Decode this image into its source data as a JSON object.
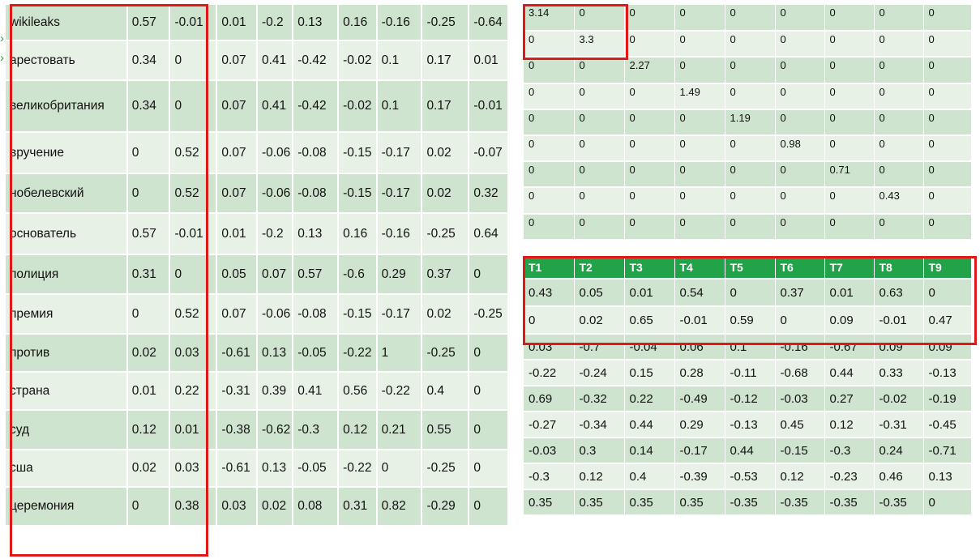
{
  "u_matrix": {
    "rows": [
      {
        "term": "wikileaks",
        "values": [
          "0.57",
          "-0.01",
          "0.01",
          "-0.2",
          "0.13",
          "0.16",
          "-0.16",
          "-0.25",
          "-0.64"
        ]
      },
      {
        "term": "арестовать",
        "values": [
          "0.34",
          "0",
          "0.07",
          "0.41",
          "-0.42",
          "-0.02",
          "0.1",
          "0.17",
          "0.01"
        ]
      },
      {
        "term": "великобритания",
        "values": [
          "0.34",
          "0",
          "0.07",
          "0.41",
          "-0.42",
          "-0.02",
          "0.1",
          "0.17",
          "-0.01"
        ]
      },
      {
        "term": "вручение",
        "values": [
          "0",
          "0.52",
          "0.07",
          "-0.06",
          "-0.08",
          "-0.15",
          "-0.17",
          "0.02",
          "-0.07"
        ]
      },
      {
        "term": "нобелевский",
        "values": [
          "0",
          "0.52",
          "0.07",
          "-0.06",
          "-0.08",
          "-0.15",
          "-0.17",
          "0.02",
          "0.32"
        ]
      },
      {
        "term": "основатель",
        "values": [
          "0.57",
          "-0.01",
          "0.01",
          "-0.2",
          "0.13",
          "0.16",
          "-0.16",
          "-0.25",
          "0.64"
        ]
      },
      {
        "term": "полиция",
        "values": [
          "0.31",
          "0",
          "0.05",
          "0.07",
          "0.57",
          "-0.6",
          "0.29",
          "0.37",
          "0"
        ]
      },
      {
        "term": "премия",
        "values": [
          "0",
          "0.52",
          "0.07",
          "-0.06",
          "-0.08",
          "-0.15",
          "-0.17",
          "0.02",
          "-0.25"
        ]
      },
      {
        "term": "против",
        "values": [
          "0.02",
          "0.03",
          "-0.61",
          "0.13",
          "-0.05",
          "-0.22",
          "1",
          "-0.25",
          "0"
        ]
      },
      {
        "term": "страна",
        "values": [
          "0.01",
          "0.22",
          "-0.31",
          "0.39",
          "0.41",
          "0.56",
          "-0.22",
          "0.4",
          "0"
        ]
      },
      {
        "term": "суд",
        "values": [
          "0.12",
          "0.01",
          "-0.38",
          "-0.62",
          "-0.3",
          "0.12",
          "0.21",
          "0.55",
          "0"
        ]
      },
      {
        "term": "сша",
        "values": [
          "0.02",
          "0.03",
          "-0.61",
          "0.13",
          "-0.05",
          "-0.22",
          "0",
          "-0.25",
          "0"
        ]
      },
      {
        "term": "церемония",
        "values": [
          "0",
          "0.38",
          "0.03",
          "0.02",
          "0.08",
          "0.31",
          "0.82",
          "-0.29",
          "0"
        ]
      }
    ]
  },
  "s_matrix": {
    "rows": [
      [
        "3.14",
        "0",
        "0",
        "0",
        "0",
        "0",
        "0",
        "0",
        "0"
      ],
      [
        "0",
        "3.3",
        "0",
        "0",
        "0",
        "0",
        "0",
        "0",
        "0"
      ],
      [
        "0",
        "0",
        "2.27",
        "0",
        "0",
        "0",
        "0",
        "0",
        "0"
      ],
      [
        "0",
        "0",
        "0",
        "1.49",
        "0",
        "0",
        "0",
        "0",
        "0"
      ],
      [
        "0",
        "0",
        "0",
        "0",
        "1.19",
        "0",
        "0",
        "0",
        "0"
      ],
      [
        "0",
        "0",
        "0",
        "0",
        "0",
        "0.98",
        "0",
        "0",
        "0"
      ],
      [
        "0",
        "0",
        "0",
        "0",
        "0",
        "0",
        "0.71",
        "0",
        "0"
      ],
      [
        "0",
        "0",
        "0",
        "0",
        "0",
        "0",
        "0",
        "0.43",
        "0"
      ],
      [
        "0",
        "0",
        "0",
        "0",
        "0",
        "0",
        "0",
        "0",
        "0"
      ]
    ]
  },
  "v_matrix": {
    "headers": [
      "T1",
      "T2",
      "T3",
      "T4",
      "T5",
      "T6",
      "T7",
      "T8",
      "T9"
    ],
    "rows": [
      [
        "0.43",
        "0.05",
        "0.01",
        "0.54",
        "0",
        "0.37",
        "0.01",
        "0.63",
        "0"
      ],
      [
        "0",
        "0.02",
        "0.65",
        "-0.01",
        "0.59",
        "0",
        "0.09",
        "-0.01",
        "0.47"
      ],
      [
        "0.03",
        "-0.7",
        "-0.04",
        "0.06",
        "0.1",
        "-0.16",
        "-0.67",
        "0.09",
        "0.09"
      ],
      [
        "-0.22",
        "-0.24",
        "0.15",
        "0.28",
        "-0.11",
        "-0.68",
        "0.44",
        "0.33",
        "-0.13"
      ],
      [
        "0.69",
        "-0.32",
        "0.22",
        "-0.49",
        "-0.12",
        "-0.03",
        "0.27",
        "-0.02",
        "-0.19"
      ],
      [
        "-0.27",
        "-0.34",
        "0.44",
        "0.29",
        "-0.13",
        "0.45",
        "0.12",
        "-0.31",
        "-0.45"
      ],
      [
        "-0.03",
        "0.3",
        "0.14",
        "-0.17",
        "0.44",
        "-0.15",
        "-0.3",
        "0.24",
        "-0.71"
      ],
      [
        "-0.3",
        "0.12",
        "0.4",
        "-0.39",
        "-0.53",
        "0.12",
        "-0.23",
        "0.46",
        "0.13"
      ],
      [
        "0.35",
        "0.35",
        "0.35",
        "0.35",
        "-0.35",
        "-0.35",
        "-0.35",
        "-0.35",
        "0"
      ]
    ]
  },
  "colors": {
    "row_odd": "#cfe4cf",
    "row_even": "#e8f1e6",
    "header": "#22a34a",
    "highlight": "#e01818"
  },
  "icons": {
    "edge_marker": "chevron-right-icon"
  }
}
